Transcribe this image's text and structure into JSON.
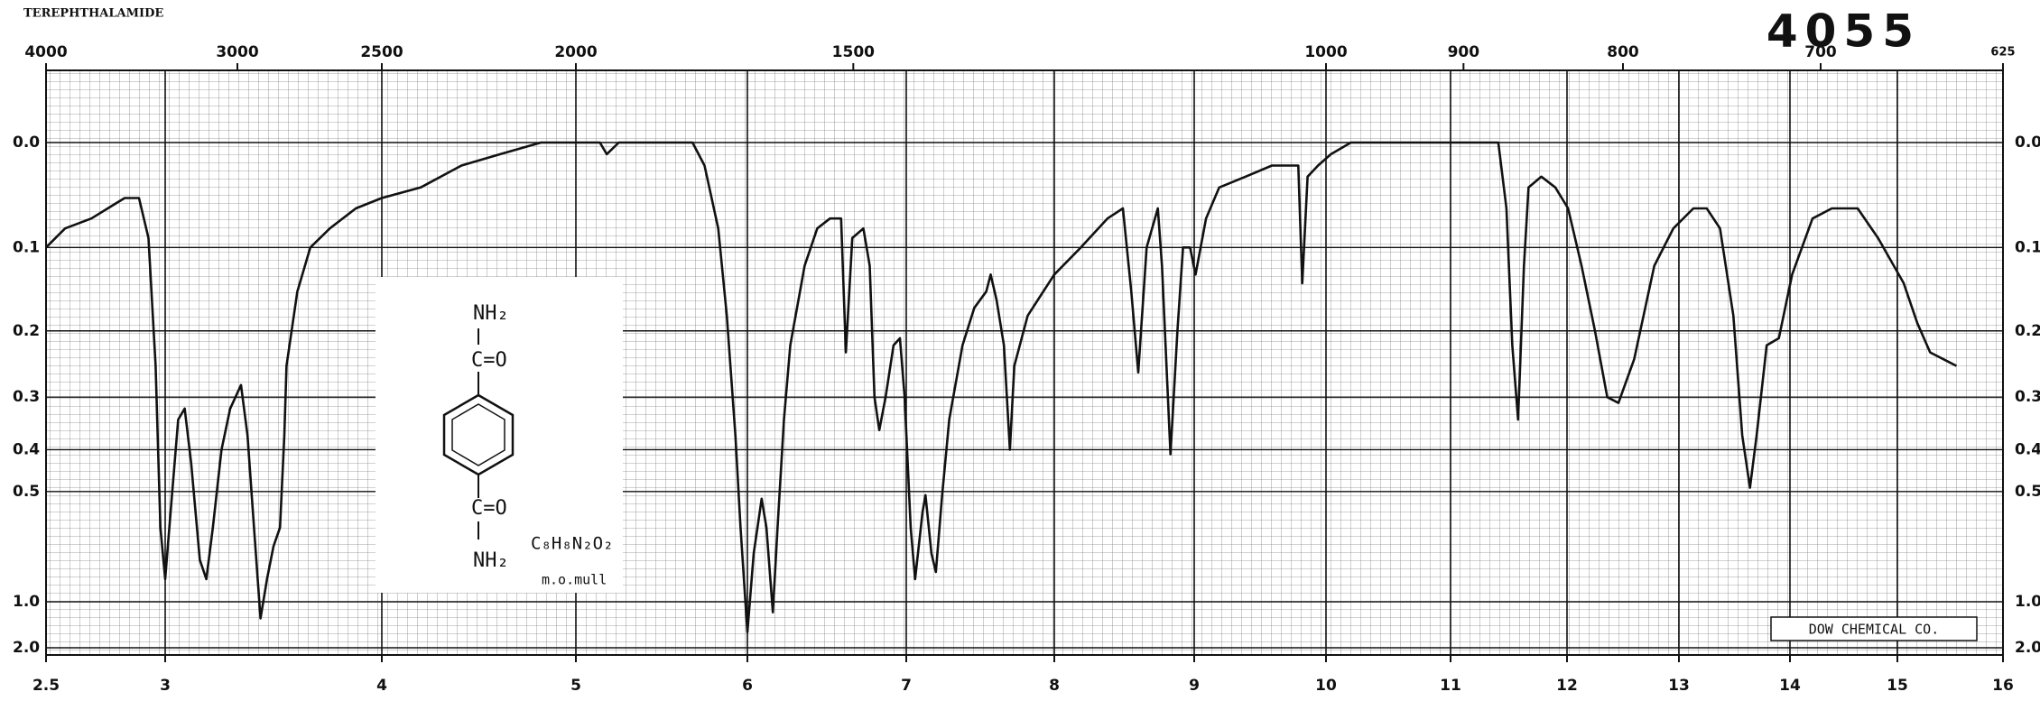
{
  "chart_data": {
    "type": "line",
    "title": "TEREPHTHALAMIDE",
    "catalog_number": "4055",
    "publisher": "DOW CHEMICAL CO.",
    "structure": {
      "groups": [
        "NH₂",
        "C=O",
        "C=O",
        "NH₂"
      ],
      "formula": "C₈H₈N₂O₂",
      "medium": "m.o.mull"
    },
    "x": [
      2.5,
      2.58,
      2.69,
      2.83,
      2.89,
      2.93,
      2.96,
      2.98,
      3.0,
      3.03,
      3.06,
      3.09,
      3.12,
      3.16,
      3.19,
      3.22,
      3.26,
      3.3,
      3.35,
      3.38,
      3.41,
      3.44,
      3.47,
      3.5,
      3.53,
      3.55,
      3.56,
      3.61,
      3.67,
      3.76,
      3.88,
      4.0,
      4.2,
      4.41,
      4.61,
      4.82,
      5.0,
      5.14,
      5.18,
      5.25,
      5.33,
      5.45,
      5.52,
      5.6,
      5.68,
      5.75,
      5.83,
      5.88,
      5.93,
      5.96,
      6.0,
      6.04,
      6.09,
      6.12,
      6.16,
      6.19,
      6.23,
      6.27,
      6.36,
      6.44,
      6.52,
      6.59,
      6.62,
      6.66,
      6.73,
      6.77,
      6.8,
      6.83,
      6.87,
      6.92,
      6.96,
      6.99,
      7.03,
      7.06,
      7.11,
      7.13,
      7.17,
      7.2,
      7.24,
      7.29,
      7.38,
      7.46,
      7.54,
      7.57,
      7.61,
      7.66,
      7.7,
      7.73,
      7.82,
      8.0,
      8.19,
      8.38,
      8.49,
      8.55,
      8.6,
      8.66,
      8.74,
      8.77,
      8.83,
      8.88,
      8.92,
      8.97,
      9.01,
      9.09,
      9.19,
      9.39,
      9.59,
      9.79,
      9.82,
      9.86,
      9.94,
      10.04,
      10.2,
      10.36,
      10.46,
      10.57,
      10.78,
      10.99,
      11.22,
      11.41,
      11.48,
      11.53,
      11.58,
      11.63,
      11.67,
      11.78,
      11.9,
      12.01,
      12.13,
      12.25,
      12.36,
      12.46,
      12.6,
      12.78,
      12.95,
      13.13,
      13.25,
      13.37,
      13.49,
      13.57,
      13.64,
      13.7,
      13.79,
      13.9,
      14.02,
      14.21,
      14.39,
      14.63,
      14.82,
      15.06,
      15.19,
      15.31,
      15.56
    ],
    "values": [
      0.1,
      0.08,
      0.07,
      0.05,
      0.05,
      0.09,
      0.25,
      0.61,
      0.84,
      0.52,
      0.34,
      0.32,
      0.43,
      0.74,
      0.84,
      0.61,
      0.4,
      0.32,
      0.28,
      0.37,
      0.61,
      1.17,
      0.84,
      0.68,
      0.61,
      0.37,
      0.25,
      0.15,
      0.1,
      0.08,
      0.06,
      0.05,
      0.04,
      0.02,
      0.01,
      0.0,
      0.0,
      0.0,
      0.01,
      0.0,
      0.0,
      0.0,
      0.0,
      0.0,
      0.0,
      0.02,
      0.08,
      0.18,
      0.37,
      0.61,
      1.39,
      0.71,
      0.52,
      0.61,
      1.1,
      0.61,
      0.34,
      0.22,
      0.12,
      0.08,
      0.07,
      0.07,
      0.23,
      0.09,
      0.08,
      0.12,
      0.3,
      0.36,
      0.3,
      0.22,
      0.21,
      0.3,
      0.61,
      0.84,
      0.56,
      0.51,
      0.71,
      0.8,
      0.52,
      0.34,
      0.22,
      0.17,
      0.15,
      0.13,
      0.16,
      0.22,
      0.4,
      0.25,
      0.18,
      0.13,
      0.1,
      0.07,
      0.06,
      0.15,
      0.26,
      0.1,
      0.06,
      0.12,
      0.41,
      0.2,
      0.1,
      0.1,
      0.13,
      0.07,
      0.04,
      0.03,
      0.02,
      0.02,
      0.14,
      0.03,
      0.02,
      0.01,
      0.0,
      0.0,
      0.0,
      0.0,
      0.0,
      0.0,
      0.0,
      0.0,
      0.06,
      0.22,
      0.34,
      0.12,
      0.04,
      0.03,
      0.04,
      0.06,
      0.12,
      0.2,
      0.3,
      0.31,
      0.24,
      0.12,
      0.08,
      0.06,
      0.06,
      0.08,
      0.18,
      0.37,
      0.49,
      0.37,
      0.22,
      0.21,
      0.13,
      0.07,
      0.06,
      0.06,
      0.09,
      0.14,
      0.19,
      0.23,
      0.25
    ],
    "color": "#111111",
    "xlim": [
      2.5,
      16
    ],
    "xticks": [
      2.5,
      3,
      4,
      5,
      6,
      7,
      8,
      9,
      10,
      11,
      12,
      13,
      14,
      15,
      16
    ],
    "x2lim": [
      4000,
      625
    ],
    "x2ticks": [
      4000,
      3000,
      2500,
      2000,
      1500,
      1000,
      900,
      800,
      700,
      625
    ],
    "ylim": [
      0,
      2
    ],
    "yscale": "transmittance",
    "yticks": [
      {
        "value": 0,
        "label": "0.0"
      },
      0.1,
      0.2,
      0.3,
      0.4,
      0.5,
      {
        "value": 1,
        "label": "1.0"
      },
      {
        "value": 2,
        "label": "2.0"
      }
    ],
    "grid": true
  }
}
